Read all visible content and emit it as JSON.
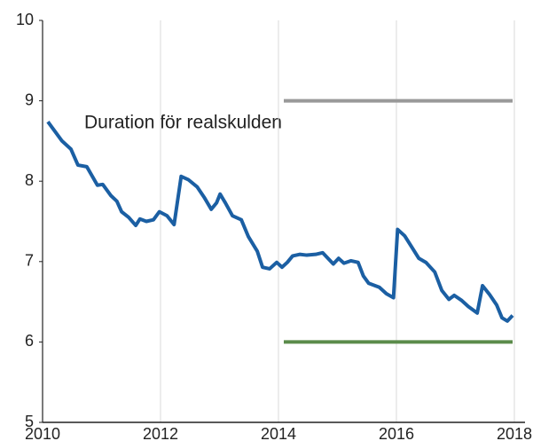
{
  "chart_data": {
    "type": "line",
    "annotation": "Duration för realskulden",
    "xlim": [
      2010,
      2018
    ],
    "xticks": [
      2010,
      2012,
      2014,
      2016,
      2018
    ],
    "ylim": [
      5,
      10
    ],
    "yticks": [
      5,
      6,
      7,
      8,
      9,
      10
    ],
    "grid": "x",
    "series": [
      {
        "color": "#1b5fa3",
        "x": [
          2010.09,
          2010.33,
          2010.48,
          2010.6,
          2010.75,
          2010.93,
          2011.02,
          2011.16,
          2011.26,
          2011.34,
          2011.46,
          2011.58,
          2011.65,
          2011.76,
          2011.88,
          2011.98,
          2012.11,
          2012.23,
          2012.35,
          2012.47,
          2012.62,
          2012.74,
          2012.86,
          2012.95,
          2013.01,
          2013.1,
          2013.22,
          2013.37,
          2013.49,
          2013.64,
          2013.73,
          2013.85,
          2013.97,
          2014.06,
          2014.15,
          2014.24,
          2014.36,
          2014.48,
          2014.63,
          2014.75,
          2014.93,
          2015.02,
          2015.11,
          2015.23,
          2015.35,
          2015.44,
          2015.53,
          2015.71,
          2015.83,
          2015.95,
          2016.02,
          2016.14,
          2016.26,
          2016.38,
          2016.5,
          2016.65,
          2016.77,
          2016.89,
          2016.98,
          2017.1,
          2017.22,
          2017.37,
          2017.46,
          2017.58,
          2017.7,
          2017.79,
          2017.88,
          2017.97
        ],
        "values": [
          8.74,
          8.5,
          8.4,
          8.2,
          8.18,
          7.95,
          7.96,
          7.82,
          7.75,
          7.62,
          7.55,
          7.45,
          7.53,
          7.5,
          7.52,
          7.62,
          7.57,
          7.46,
          8.06,
          8.02,
          7.93,
          7.8,
          7.65,
          7.73,
          7.84,
          7.73,
          7.57,
          7.52,
          7.31,
          7.13,
          6.93,
          6.91,
          6.99,
          6.93,
          6.99,
          7.07,
          7.09,
          7.08,
          7.09,
          7.11,
          6.97,
          7.04,
          6.98,
          7.01,
          6.99,
          6.82,
          6.73,
          6.68,
          6.6,
          6.55,
          7.4,
          7.32,
          7.18,
          7.04,
          6.99,
          6.87,
          6.64,
          6.53,
          6.58,
          6.52,
          6.44,
          6.36,
          6.7,
          6.59,
          6.46,
          6.3,
          6.26,
          6.33
        ]
      },
      {
        "color": "#999999",
        "x": [
          2014.09,
          2017.97
        ],
        "values": [
          9,
          9
        ]
      },
      {
        "color": "#5b8c4b",
        "x": [
          2014.09,
          2017.97
        ],
        "values": [
          6,
          6
        ]
      }
    ]
  }
}
